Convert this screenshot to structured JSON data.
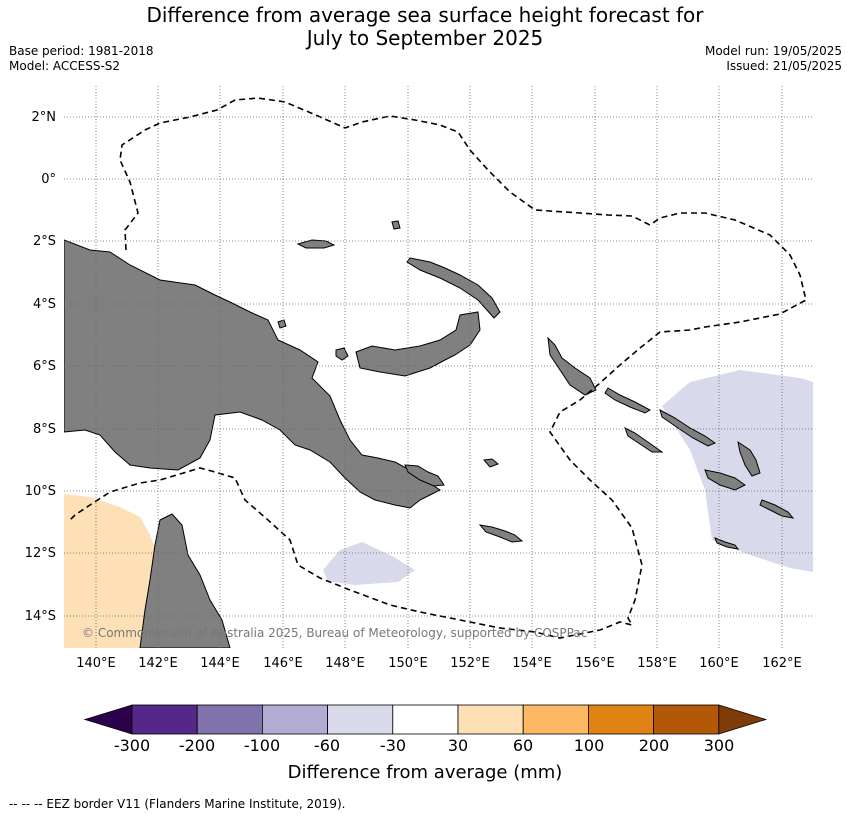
{
  "title_line1": "Difference from average sea surface height forecast for",
  "title_line2": "July to September 2025",
  "base_period": "Base period: 1981-2018",
  "model": "Model: ACCESS-S2",
  "model_run": "Model run: 19/05/2025",
  "issued": "Issued: 21/05/2025",
  "copyright": "© Commonwealth of Australia 2025, Bureau of Meteorology, supported by COSPPac",
  "lat_ticks": [
    "2°N",
    "0°",
    "2°S",
    "4°S",
    "6°S",
    "8°S",
    "10°S",
    "12°S",
    "14°S"
  ],
  "lon_ticks": [
    "140°E",
    "142°E",
    "144°E",
    "146°E",
    "148°E",
    "150°E",
    "152°E",
    "154°E",
    "156°E",
    "158°E",
    "160°E",
    "162°E"
  ],
  "colorbar": {
    "label": "Difference from average (mm)",
    "ticks": [
      "-300",
      "-200",
      "-100",
      "-60",
      "-30",
      "30",
      "60",
      "100",
      "200",
      "300"
    ],
    "colors": [
      "#2d004b",
      "#542788",
      "#8073ac",
      "#b2abd2",
      "#d8daeb",
      "#ffffff",
      "#fee0b6",
      "#fdb863",
      "#e08214",
      "#b35806",
      "#7f3b08"
    ]
  },
  "legend_note": "--  --  -- EEZ border V11 (Flanders Marine Institute, 2019).",
  "colors": {
    "land": "#808080",
    "eez": "#000000",
    "grid": "#666666"
  }
}
